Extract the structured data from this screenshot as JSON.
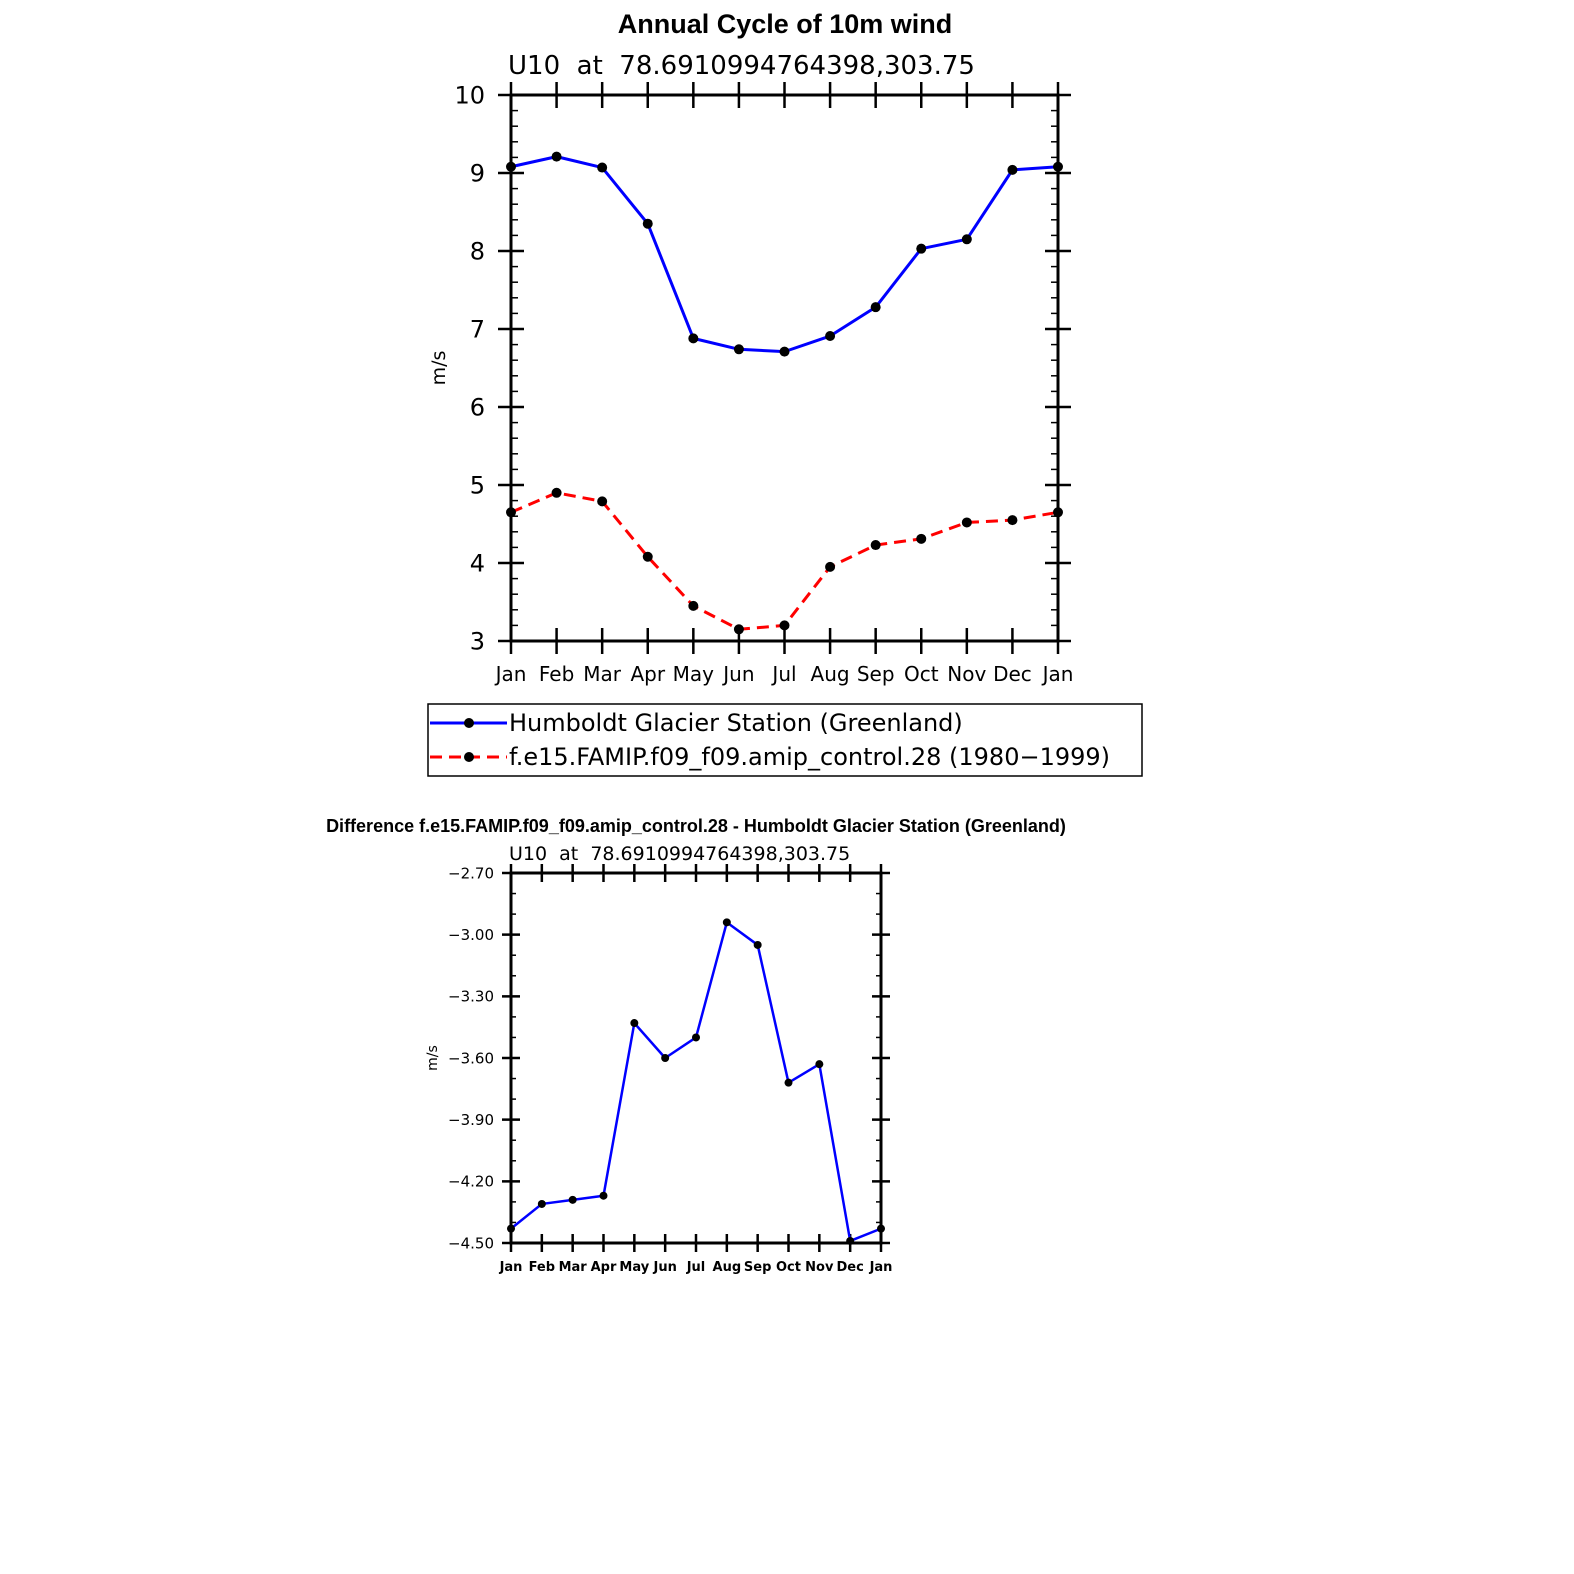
{
  "chart_data": [
    {
      "type": "line",
      "title": "Annual Cycle of 10m wind",
      "subtitle": "U10  at  78.6910994764398,303.75",
      "ylabel": "m/s",
      "ylim": [
        3,
        10
      ],
      "yticks": [
        3,
        4,
        5,
        6,
        7,
        8,
        9,
        10
      ],
      "yticklabels": [
        "3",
        "4",
        "5",
        "6",
        "7",
        "8",
        "9",
        "10"
      ],
      "categories": [
        "Jan",
        "Feb",
        "Mar",
        "Apr",
        "May",
        "Jun",
        "Jul",
        "Aug",
        "Sep",
        "Oct",
        "Nov",
        "Dec",
        "Jan"
      ],
      "series": [
        {
          "name": "Humboldt Glacier Station (Greenland)",
          "color": "#0000ff",
          "dash": "solid",
          "values": [
            9.08,
            9.21,
            9.07,
            8.35,
            6.88,
            6.74,
            6.71,
            6.91,
            7.28,
            8.03,
            8.15,
            9.04,
            9.08
          ]
        },
        {
          "name": "f.e15.FAMIP.f09_f09.amip_control.28 (1980−1999)",
          "color": "#ff0000",
          "dash": "dashed",
          "values": [
            4.65,
            4.9,
            4.79,
            4.08,
            3.45,
            3.15,
            3.2,
            3.95,
            4.23,
            4.31,
            4.52,
            4.55,
            4.65
          ]
        }
      ],
      "legend": "below"
    },
    {
      "type": "line",
      "title": "Difference f.e15.FAMIP.f09_f09.amip_control.28 - Humboldt Glacier Station (Greenland)",
      "subtitle": "U10  at  78.6910994764398,303.75",
      "ylabel": "m/s",
      "ylim": [
        -4.5,
        -2.7
      ],
      "yticks": [
        -4.5,
        -4.2,
        -3.9,
        -3.6,
        -3.3,
        -3.0,
        -2.7
      ],
      "yticklabels": [
        "−4.50",
        "−4.20",
        "−3.90",
        "−3.60",
        "−3.30",
        "−3.00",
        "−2.70"
      ],
      "categories": [
        "Jan",
        "Feb",
        "Mar",
        "Apr",
        "May",
        "Jun",
        "Jul",
        "Aug",
        "Sep",
        "Oct",
        "Nov",
        "Dec",
        "Jan"
      ],
      "series": [
        {
          "name": "Difference",
          "color": "#0000ff",
          "dash": "solid",
          "values": [
            -4.43,
            -4.31,
            -4.29,
            -4.27,
            -3.43,
            -3.6,
            -3.5,
            -2.94,
            -3.05,
            -3.72,
            -3.63,
            -4.49,
            -4.43
          ]
        }
      ]
    }
  ]
}
